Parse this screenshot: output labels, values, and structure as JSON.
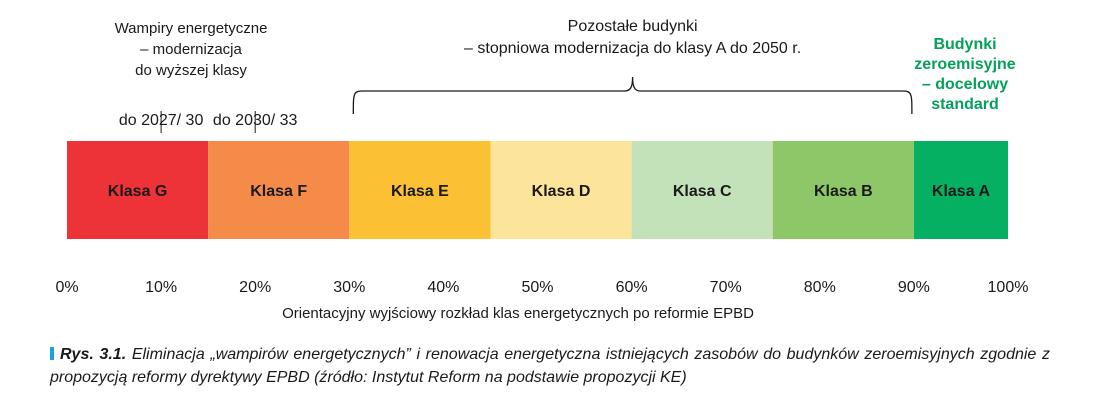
{
  "chart_data": {
    "type": "bar",
    "orientation": "horizontal-stacked",
    "xlabel": "Orientacyjny wyjściowy rozkład klas energetycznych po reformie EPBD",
    "xlim": [
      0,
      100
    ],
    "x_ticks": [
      "0%",
      "10%",
      "20%",
      "30%",
      "40%",
      "50%",
      "60%",
      "70%",
      "80%",
      "90%",
      "100%"
    ],
    "segments": [
      {
        "label": "Klasa G",
        "start": 0,
        "end": 15,
        "color": "#ee3338"
      },
      {
        "label": "Klasa F",
        "start": 15,
        "end": 30,
        "color": "#f48b49"
      },
      {
        "label": "Klasa E",
        "start": 30,
        "end": 45,
        "color": "#fcc035"
      },
      {
        "label": "Klasa D",
        "start": 45,
        "end": 60,
        "color": "#fde49b"
      },
      {
        "label": "Klasa C",
        "start": 60,
        "end": 75,
        "color": "#c3e2b9"
      },
      {
        "label": "Klasa B",
        "start": 75,
        "end": 90,
        "color": "#8dc767"
      },
      {
        "label": "Klasa A",
        "start": 90,
        "end": 100,
        "color": "#05b062"
      }
    ],
    "annotations": [
      {
        "id": "wampiry",
        "lines": [
          "Wampiry energetyczne",
          "– modernizacja",
          "do wyższej klasy"
        ],
        "color": "#1a1a1a"
      },
      {
        "id": "deadline-g",
        "text": "do 2027/ 30",
        "marker_at": 10
      },
      {
        "id": "deadline-f",
        "text": "do 2030/ 33",
        "marker_at": 20
      },
      {
        "id": "pozostale",
        "lines": [
          "Pozostałe budynki",
          "– stopniowa modernizacja do klasy A do 2050 r."
        ],
        "range": [
          30,
          90
        ]
      },
      {
        "id": "zero",
        "lines": [
          "Budynki",
          "zeroemisyjne",
          "– docelowy",
          "standard"
        ],
        "color": "#05a05a"
      }
    ]
  },
  "caption": {
    "label": "Rys. 3.1.",
    "text": " Eliminacja „wampirów energetycznych” i renowacja energetyczna istniejących zasobów do budynków zeroemisyjnych zgodnie z propozycją reformy dyrektywy EPBD (źródło: Instytut Reform na podstawie propozycji KE)",
    "marker_color": "#1ba1e2"
  }
}
